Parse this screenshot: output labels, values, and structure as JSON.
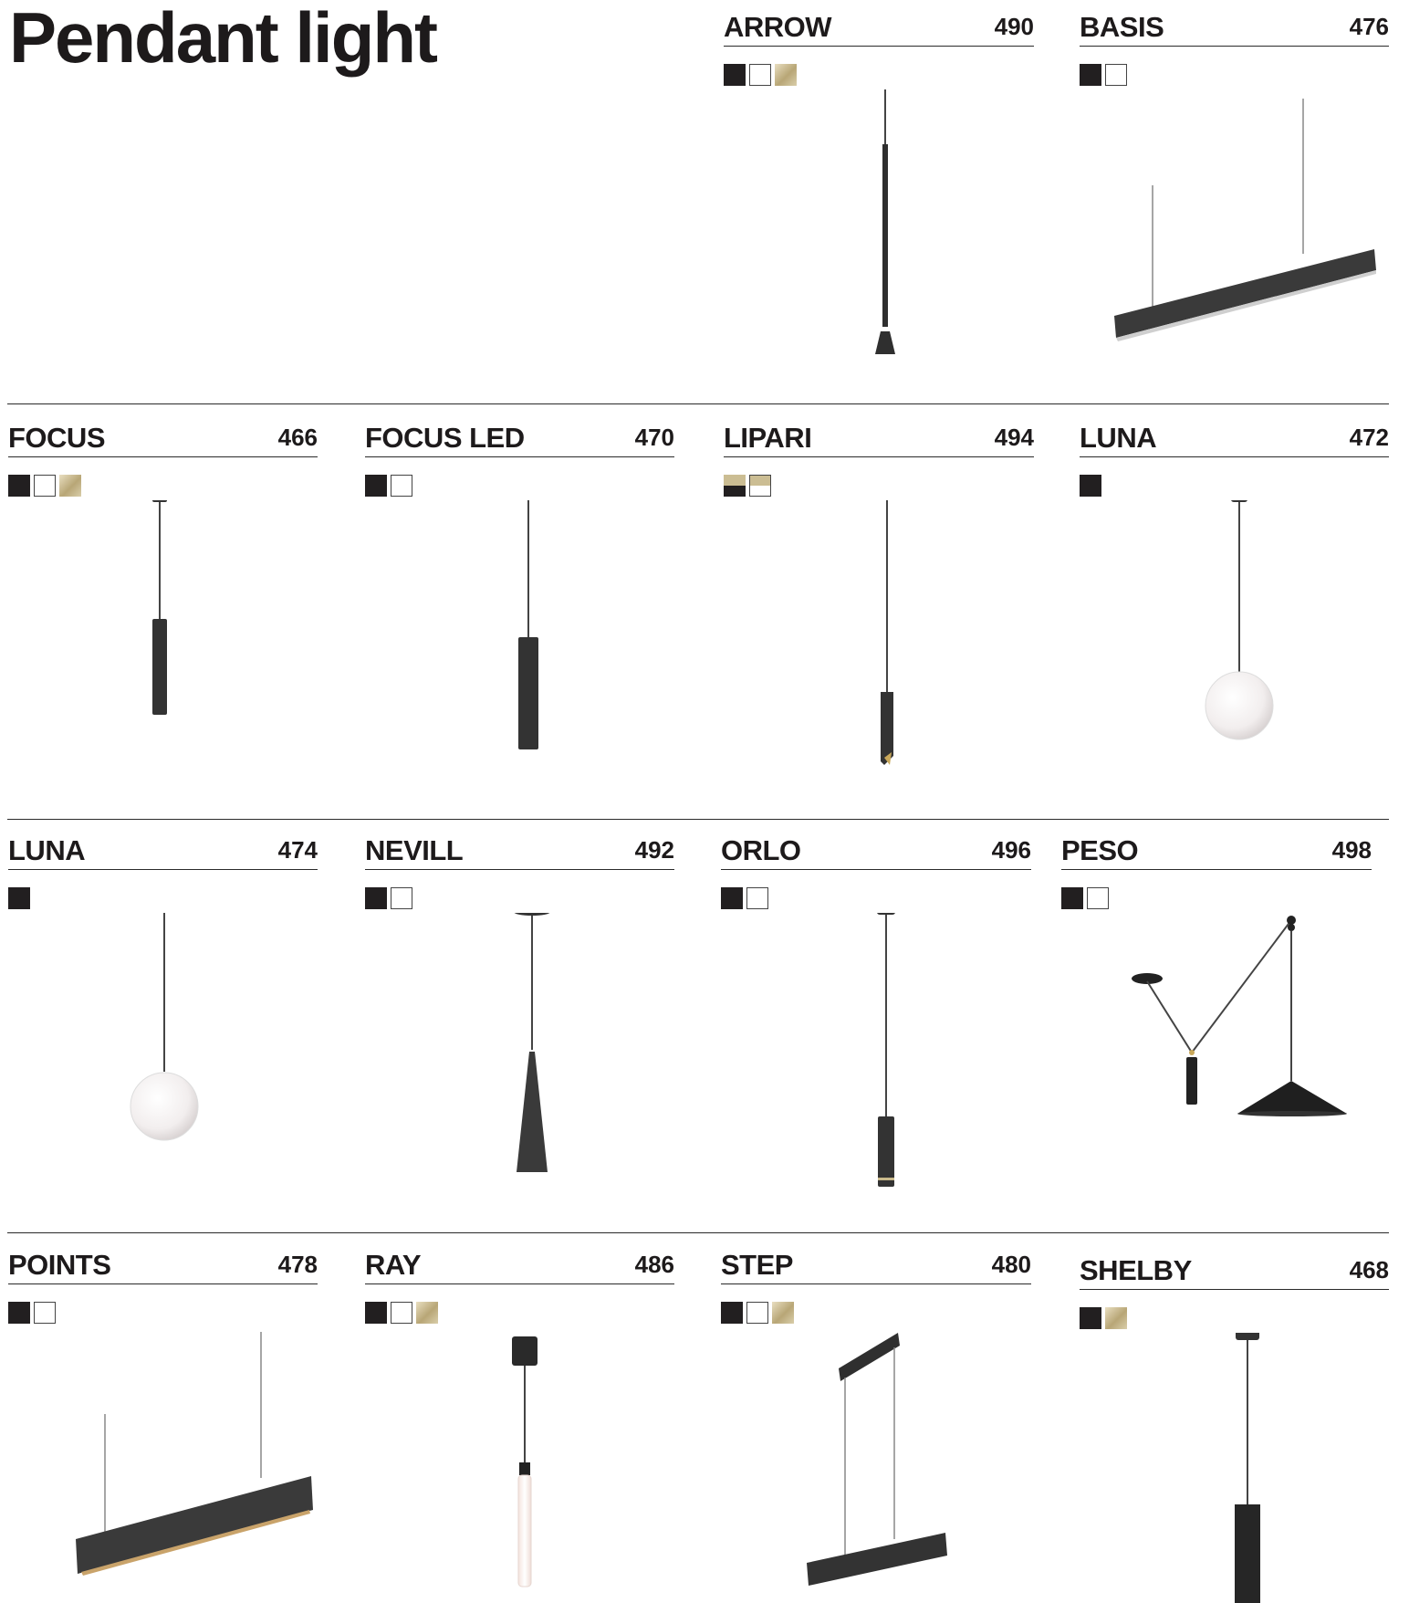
{
  "page_title": "Pendant light",
  "products": [
    {
      "name": "ARROW",
      "page": "490",
      "finishes": [
        "black",
        "white",
        "gold"
      ]
    },
    {
      "name": "BASIS",
      "page": "476",
      "finishes": [
        "black",
        "white"
      ]
    },
    {
      "name": "FOCUS",
      "page": "466",
      "finishes": [
        "black",
        "white",
        "gold"
      ]
    },
    {
      "name": "FOCUS LED",
      "page": "470",
      "finishes": [
        "black",
        "white"
      ]
    },
    {
      "name": "LIPARI",
      "page": "494",
      "finishes": [
        "gold-black",
        "gold-white"
      ]
    },
    {
      "name": "LUNA",
      "page": "472",
      "finishes": [
        "black"
      ]
    },
    {
      "name": "LUNA",
      "page": "474",
      "finishes": [
        "black"
      ]
    },
    {
      "name": "NEVILL",
      "page": "492",
      "finishes": [
        "black",
        "white"
      ]
    },
    {
      "name": "ORLO",
      "page": "496",
      "finishes": [
        "black",
        "white"
      ]
    },
    {
      "name": "PESO",
      "page": "498",
      "finishes": [
        "black",
        "white"
      ]
    },
    {
      "name": "POINTS",
      "page": "478",
      "finishes": [
        "black",
        "white"
      ]
    },
    {
      "name": "RAY",
      "page": "486",
      "finishes": [
        "black",
        "white",
        "gold"
      ]
    },
    {
      "name": "STEP",
      "page": "480",
      "finishes": [
        "black",
        "white",
        "gold"
      ]
    },
    {
      "name": "SHELBY",
      "page": "468",
      "finishes": [
        "black",
        "gold"
      ]
    }
  ]
}
